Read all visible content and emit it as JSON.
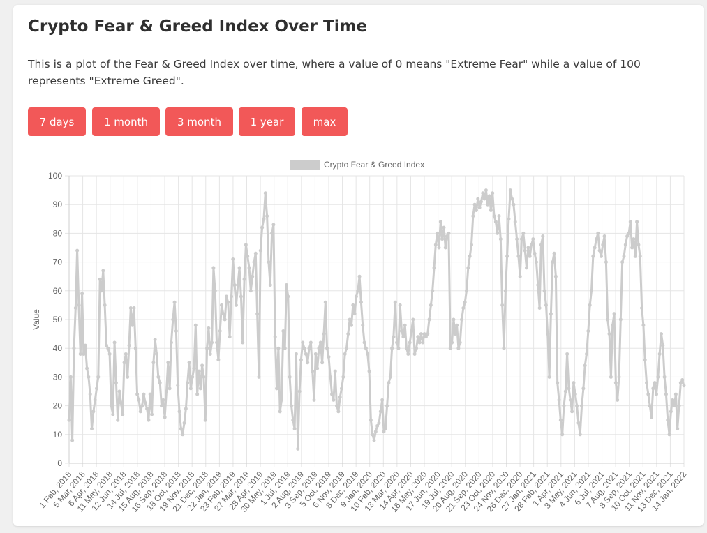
{
  "page": {
    "title": "Crypto Fear & Greed Index Over Time",
    "description": "This is a plot of the Fear & Greed Index over time, where a value of 0 means \"Extreme Fear\" while a value of 100 represents \"Extreme Greed\"."
  },
  "buttons": [
    {
      "label": "7 days"
    },
    {
      "label": "1 month"
    },
    {
      "label": "3 month"
    },
    {
      "label": "1 year"
    },
    {
      "label": "max"
    }
  ],
  "colors": {
    "button_bg": "#f25858",
    "button_text": "#ffffff",
    "series_line": "#cccccc",
    "grid": "#e5e5e5",
    "text": "#666666"
  },
  "chart_data": {
    "type": "line",
    "title": "",
    "xlabel": "",
    "ylabel": "Value",
    "ylim": [
      0,
      100
    ],
    "yticks": [
      0,
      10,
      20,
      30,
      40,
      50,
      60,
      70,
      80,
      90,
      100
    ],
    "grid": true,
    "legend_position": "top-center",
    "x_tick_labels": [
      "1 Feb, 2018",
      "5 Mar, 2018",
      "6 Apr, 2018",
      "11 May, 2018",
      "12 Jun, 2018",
      "14 Jul, 2018",
      "15 Aug, 2018",
      "16 Sep, 2018",
      "18 Oct, 2018",
      "19 Nov, 2018",
      "21 Dec, 2018",
      "22 Jan, 2019",
      "23 Feb, 2019",
      "27 Mar, 2019",
      "28 Apr, 2019",
      "30 May, 2019",
      "1 Jul, 2019",
      "2 Aug, 2019",
      "3 Sep, 2019",
      "5 Oct, 2019",
      "6 Nov, 2019",
      "8 Dec, 2019",
      "9 Jan, 2020",
      "10 Feb, 2020",
      "13 Mar, 2020",
      "14 Apr, 2020",
      "16 May, 2020",
      "17 Jun, 2020",
      "19 Jul, 2020",
      "20 Aug, 2020",
      "21 Sep, 2020",
      "23 Oct, 2020",
      "24 Nov, 2020",
      "26 Dec, 2020",
      "27 Jan, 2021",
      "28 Feb, 2021",
      "1 Apr, 2021",
      "3 May, 2021",
      "4 Jun, 2021",
      "6 Jul, 2021",
      "7 Aug, 2021",
      "8 Sep, 2021",
      "10 Oct, 2021",
      "11 Nov, 2021",
      "13 Dec, 2021",
      "14 Jan, 2022"
    ],
    "series": [
      {
        "name": "Crypto Fear & Greed Index",
        "values": [
          15,
          30,
          8,
          40,
          54,
          74,
          55,
          38,
          59,
          38,
          41,
          33,
          30,
          24,
          12,
          18,
          22,
          26,
          30,
          64,
          60,
          67,
          55,
          41,
          40,
          38,
          20,
          17,
          42,
          28,
          15,
          25,
          21,
          17,
          35,
          38,
          30,
          41,
          54,
          48,
          54,
          40,
          24,
          22,
          18,
          20,
          24,
          21,
          19,
          15,
          24,
          17,
          35,
          43,
          38,
          30,
          28,
          20,
          22,
          16,
          25,
          35,
          26,
          42,
          50,
          56,
          46,
          27,
          18,
          12,
          10,
          14,
          19,
          28,
          35,
          26,
          30,
          33,
          48,
          24,
          32,
          26,
          34,
          30,
          15,
          40,
          47,
          38,
          42,
          68,
          60,
          42,
          36,
          46,
          55,
          52,
          50,
          58,
          56,
          44,
          58,
          71,
          62,
          55,
          62,
          68,
          58,
          42,
          64,
          76,
          72,
          68,
          60,
          65,
          70,
          73,
          52,
          30,
          74,
          82,
          85,
          94,
          86,
          70,
          62,
          80,
          83,
          44,
          26,
          40,
          18,
          22,
          46,
          40,
          62,
          58,
          30,
          20,
          15,
          12,
          38,
          5,
          25,
          36,
          42,
          40,
          38,
          35,
          40,
          42,
          32,
          22,
          38,
          33,
          40,
          42,
          35,
          45,
          56,
          40,
          37,
          30,
          24,
          22,
          32,
          20,
          18,
          23,
          26,
          30,
          38,
          40,
          45,
          50,
          48,
          55,
          52,
          58,
          60,
          65,
          56,
          48,
          42,
          40,
          38,
          32,
          15,
          10,
          8,
          11,
          13,
          14,
          18,
          22,
          11,
          12,
          20,
          28,
          30,
          40,
          44,
          56,
          42,
          40,
          55,
          46,
          44,
          48,
          40,
          38,
          42,
          46,
          50,
          38,
          40,
          44,
          42,
          45,
          42,
          45,
          44,
          45,
          50,
          55,
          60,
          68,
          76,
          80,
          75,
          84,
          78,
          82,
          75,
          79,
          80,
          40,
          42,
          50,
          45,
          48,
          40,
          42,
          50,
          54,
          56,
          60,
          68,
          72,
          76,
          86,
          90,
          88,
          92,
          89,
          91,
          94,
          92,
          95,
          90,
          93,
          88,
          94,
          86,
          84,
          80,
          86,
          78,
          55,
          40,
          60,
          72,
          85,
          95,
          92,
          90,
          84,
          78,
          72,
          65,
          78,
          80,
          74,
          68,
          75,
          72,
          76,
          78,
          73,
          70,
          62,
          54,
          76,
          79,
          60,
          55,
          45,
          30,
          52,
          70,
          73,
          65,
          28,
          22,
          15,
          10,
          20,
          25,
          38,
          26,
          22,
          18,
          28,
          24,
          20,
          14,
          10,
          20,
          26,
          34,
          38,
          46,
          55,
          60,
          72,
          75,
          78,
          80,
          74,
          72,
          76,
          79,
          70,
          50,
          45,
          30,
          48,
          52,
          28,
          22,
          30,
          50,
          70,
          72,
          76,
          79,
          80,
          84,
          75,
          78,
          72,
          84,
          76,
          72,
          54,
          48,
          36,
          28,
          24,
          20,
          16,
          26,
          28,
          24,
          30,
          38,
          45,
          41,
          30,
          24,
          15,
          10,
          18,
          22,
          20,
          24,
          12,
          20,
          28,
          29,
          27
        ]
      }
    ]
  }
}
